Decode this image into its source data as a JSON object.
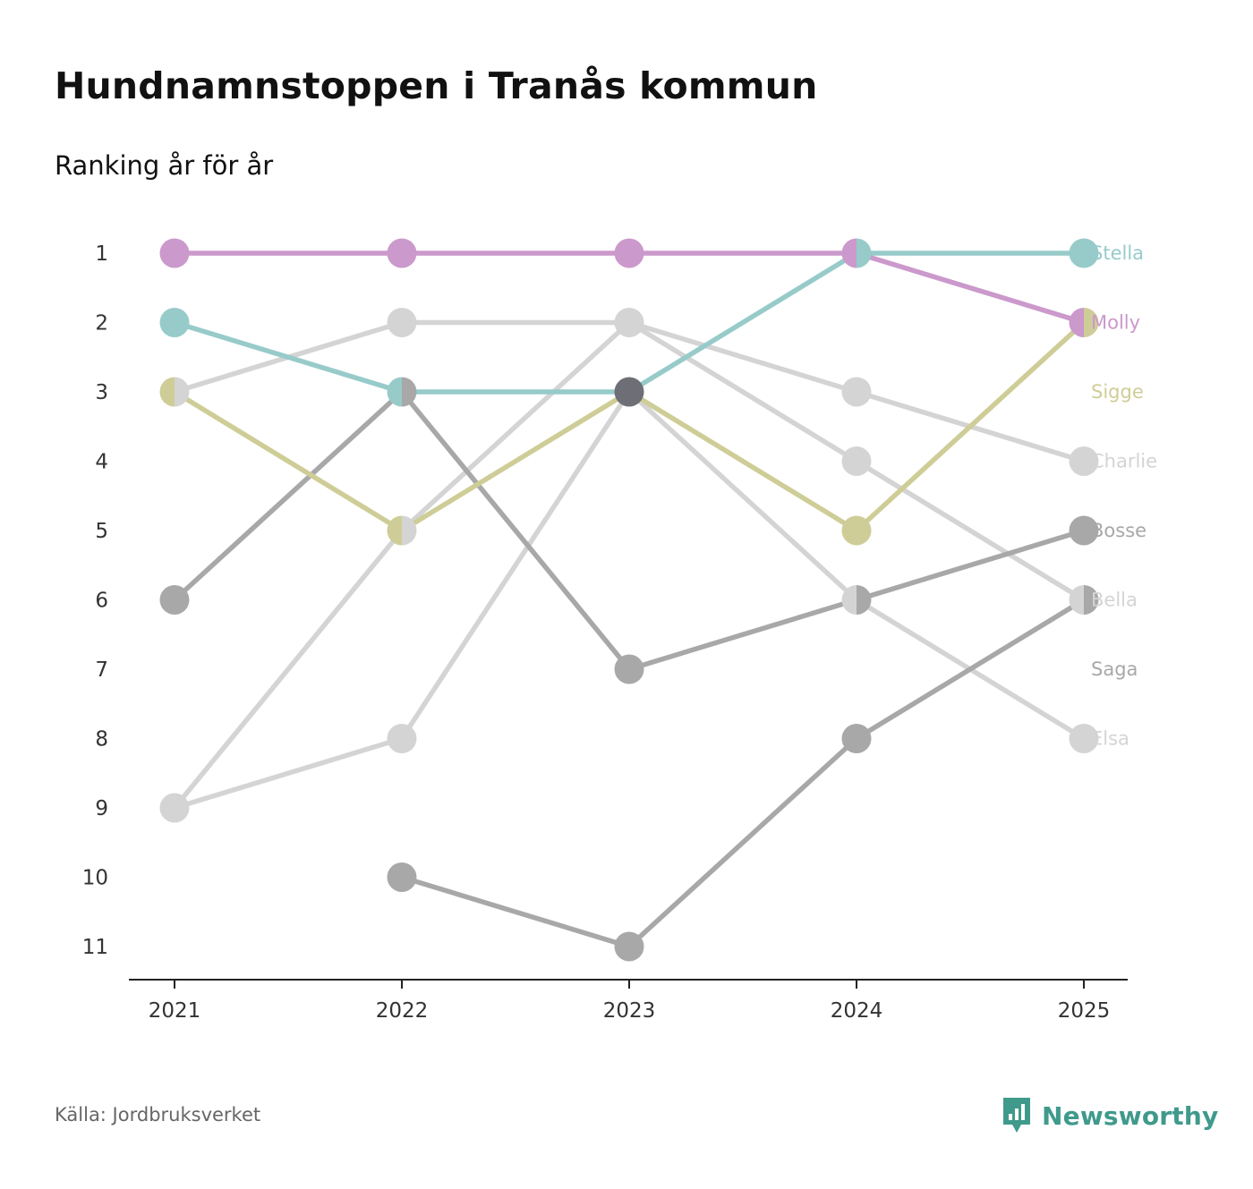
{
  "header": {
    "title": "Hundnamnstoppen i Tranås kommun",
    "subtitle": "Ranking år för år"
  },
  "footer": {
    "source": "Källa: Jordbruksverket",
    "brand": "Newsworthy",
    "brand_icon": "newsworthy-logo-icon"
  },
  "colors": {
    "axis": "#222222",
    "brand": "#3f9a8c"
  },
  "chart_data": {
    "type": "line",
    "title": "Hundnamnstoppen i Tranås kommun",
    "subtitle": "Ranking år för år",
    "xlabel": "",
    "ylabel": "",
    "x": [
      "2021",
      "2022",
      "2023",
      "2024",
      "2025"
    ],
    "y_ticks": [
      "1",
      "2",
      "3",
      "4",
      "5",
      "6",
      "7",
      "8",
      "9",
      "10",
      "11"
    ],
    "ylim": [
      1,
      11
    ],
    "y_inverted": true,
    "grid": false,
    "legend": "direct labels at right end of lines",
    "series": [
      {
        "name": "Charlie",
        "color": "#d4d4d4",
        "values": [
          9,
          5,
          2,
          3,
          4
        ]
      },
      {
        "name": "Bella",
        "color": "#d4d4d4",
        "values": [
          3,
          2,
          2,
          4,
          6
        ]
      },
      {
        "name": "Elsa",
        "color": "#d4d4d4",
        "values": [
          9,
          8,
          3,
          6,
          8
        ]
      },
      {
        "name": "Bosse",
        "color": "#a8a8a8",
        "values": [
          6,
          3,
          7,
          6,
          5
        ]
      },
      {
        "name": "Saga",
        "color": "#a8a8a8",
        "values": [
          null,
          10,
          11,
          8,
          6
        ]
      },
      {
        "name": "Sigge",
        "color": "#cfcd97",
        "values": [
          3,
          5,
          3,
          5,
          2
        ]
      },
      {
        "name": "Stella",
        "color": "#97cbca",
        "values": [
          2,
          3,
          3,
          1,
          1
        ]
      },
      {
        "name": "Molly",
        "color": "#cb99cb",
        "values": [
          1,
          1,
          1,
          1,
          2
        ]
      }
    ],
    "series_labels": [
      {
        "name": "Stella",
        "rank": 1,
        "color": "#97cbca"
      },
      {
        "name": "Molly",
        "rank": 2,
        "color": "#cb99cb"
      },
      {
        "name": "Sigge",
        "rank": 3,
        "color": "#cfcd97"
      },
      {
        "name": "Charlie",
        "rank": 4,
        "color": "#d4d4d4"
      },
      {
        "name": "Bosse",
        "rank": 5,
        "color": "#a8a8a8"
      },
      {
        "name": "Bella",
        "rank": 6,
        "color": "#d4d4d4"
      },
      {
        "name": "Saga",
        "rank": 7,
        "color": "#a8a8a8"
      },
      {
        "name": "Elsa",
        "rank": 8,
        "color": "#d4d4d4"
      }
    ],
    "tie_highlight": {
      "x": "2023",
      "rank": 3,
      "color": "#6e6e76"
    }
  }
}
